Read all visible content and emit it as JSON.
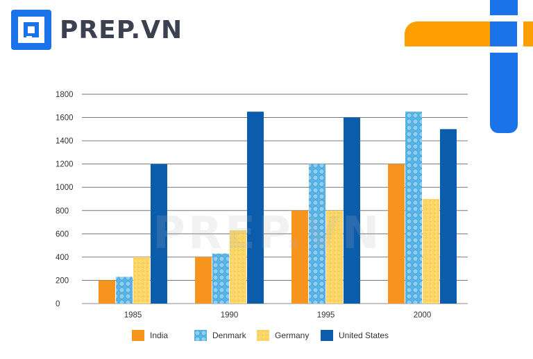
{
  "brand": {
    "name": "PREP.VN",
    "watermark": "PREP.VN",
    "colors": {
      "blue": "#1a73e8",
      "orange": "#ff9e00",
      "text": "#3b4150"
    }
  },
  "chart_data": {
    "type": "bar",
    "categories": [
      "1985",
      "1990",
      "1995",
      "2000"
    ],
    "y_ticks": [
      "0",
      "200",
      "400",
      "600",
      "800",
      "1000",
      "1200",
      "1400",
      "1600",
      "1800"
    ],
    "ylim": [
      0,
      1800
    ],
    "grid": true,
    "legend_position": "bottom",
    "series": [
      {
        "name": "India",
        "values": [
          200,
          400,
          800,
          1200
        ],
        "color": "#f7941d",
        "pattern": "solid"
      },
      {
        "name": "Denmark",
        "values": [
          230,
          430,
          1200,
          1650
        ],
        "color": "#5ab4e5",
        "pattern": "cells"
      },
      {
        "name": "Germany",
        "values": [
          400,
          630,
          800,
          900
        ],
        "color": "#fbd667",
        "pattern": "texture"
      },
      {
        "name": "United States",
        "values": [
          1200,
          1650,
          1600,
          1500
        ],
        "color": "#0b5cab",
        "pattern": "solid"
      }
    ]
  }
}
